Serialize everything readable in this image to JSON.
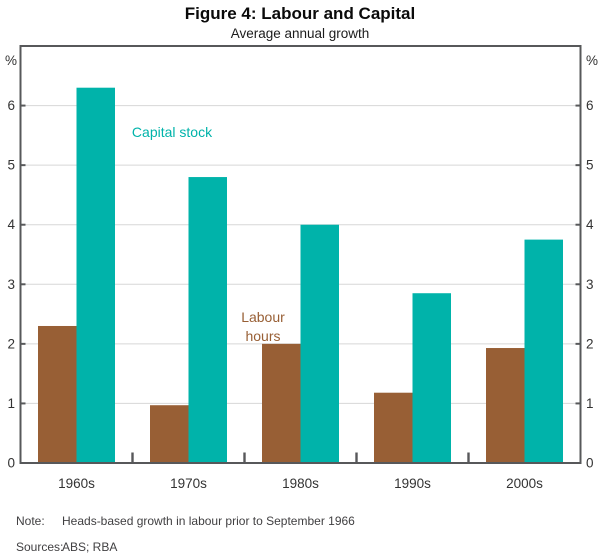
{
  "header": {
    "title": "Figure 4: Labour and Capital",
    "subtitle": "Average annual growth"
  },
  "chart_data": {
    "type": "bar",
    "title": "Figure 4: Labour and Capital",
    "subtitle": "Average annual growth",
    "categories": [
      "1960s",
      "1970s",
      "1980s",
      "1990s",
      "2000s"
    ],
    "series": [
      {
        "name": "Labour hours",
        "label_lines": [
          "Labour",
          "hours"
        ],
        "color": "#985F35",
        "values": [
          2.3,
          0.97,
          2.0,
          1.18,
          1.93
        ]
      },
      {
        "name": "Capital stock",
        "label_lines": [
          "Capital stock"
        ],
        "color": "#00B3AA",
        "values": [
          6.3,
          4.8,
          4.0,
          2.85,
          3.75
        ]
      }
    ],
    "unit_label": "%",
    "unit_label_right": "%",
    "y_ticks": [
      0,
      1,
      2,
      3,
      4,
      5,
      6
    ],
    "ylim": [
      0,
      7
    ],
    "grid": true,
    "legend_position": "in-plot-annotations",
    "xlabel": "",
    "ylabel": "%"
  },
  "footer": {
    "note_label": "Note:",
    "note_text": "Heads-based growth in labour prior to September 1966",
    "sources_label": "Sources:",
    "sources_text": "ABS; RBA"
  },
  "colors": {
    "capital_stock": "#00B3AA",
    "labour_hours": "#985F35",
    "axis_frame": "#57585A",
    "gridline": "#D7D7D7",
    "tick_label": "#333333",
    "footnote_text": "#414042"
  }
}
